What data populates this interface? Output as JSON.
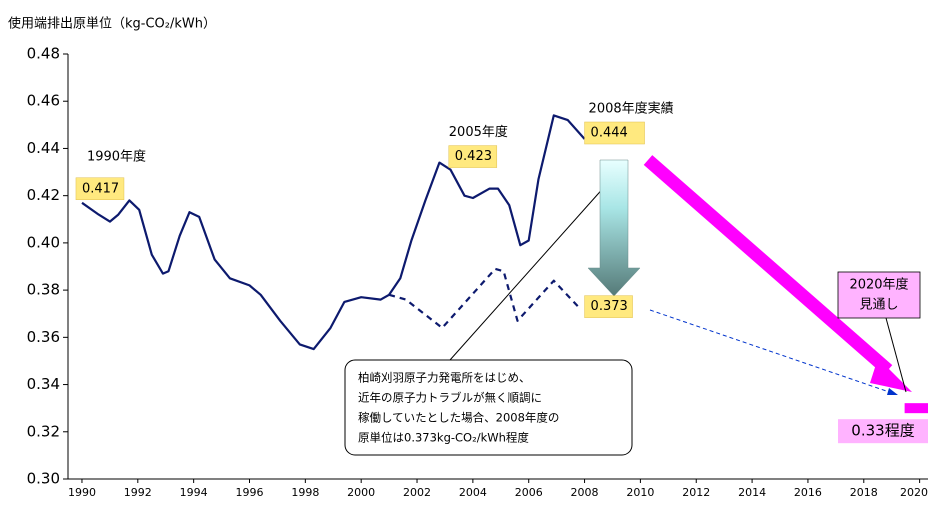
{
  "chart_data": {
    "type": "line",
    "title": "使用端排出原単位（kg-CO₂/kWh）",
    "xlim": [
      1989.5,
      2020.3
    ],
    "xticks": [
      1990,
      1992,
      1994,
      1996,
      1998,
      2000,
      2002,
      2004,
      2006,
      2008,
      2010,
      2012,
      2014,
      2016,
      2018,
      2020
    ],
    "ylim": [
      0.3,
      0.48
    ],
    "yticks": [
      {
        "value": 0.3,
        "label": "0.30"
      },
      0.32,
      0.34,
      0.36,
      0.38,
      {
        "value": 0.4,
        "label": "0.40"
      },
      0.42,
      0.44,
      0.46,
      0.48
    ],
    "grid": false,
    "series": [
      {
        "color": "#0d1a6e",
        "style": "solid",
        "x": [
          1990,
          1990.6,
          1991,
          1991.3,
          1991.7,
          1992.05,
          1992.5,
          1992.9,
          1993.1,
          1993.5,
          1993.85,
          1994.2,
          1994.75,
          1995.3,
          1996,
          1996.4,
          1997.1,
          1997.8,
          1998.3,
          1998.9,
          1999.4,
          2000,
          2000.7,
          2001,
          2001.4,
          2001.8,
          2002.3,
          2002.8,
          2003.2,
          2003.7,
          2004,
          2004.6,
          2004.9,
          2005.3,
          2005.7,
          2006,
          2006.35,
          2006.9,
          2007.4,
          2008
        ],
        "values": [
          0.417,
          0.412,
          0.409,
          0.412,
          0.418,
          0.414,
          0.395,
          0.387,
          0.388,
          0.403,
          0.413,
          0.411,
          0.393,
          0.385,
          0.382,
          0.378,
          0.367,
          0.357,
          0.355,
          0.364,
          0.375,
          0.377,
          0.376,
          0.378,
          0.385,
          0.401,
          0.418,
          0.434,
          0.431,
          0.42,
          0.419,
          0.423,
          0.423,
          0.416,
          0.399,
          0.401,
          0.427,
          0.454,
          0.452,
          0.444
        ]
      },
      {
        "color": "#0d1a6e",
        "style": "dashed",
        "x": [
          2001,
          2001.6,
          2002.9,
          2004.8,
          2005.1,
          2005.6,
          2006.9,
          2007.85
        ],
        "values": [
          0.378,
          0.376,
          0.364,
          0.389,
          0.388,
          0.367,
          0.384,
          0.372
        ]
      }
    ],
    "highlights": [
      {
        "caption": "1990年度",
        "year": 1990,
        "value": 0.417
      },
      {
        "caption": "2005年度",
        "year": 2005,
        "value": 0.423
      },
      {
        "caption": "2008年度実績",
        "year": 2008,
        "value": 0.444
      },
      {
        "year": 2008,
        "value": 0.373
      }
    ],
    "target": {
      "caption": [
        "2020年度",
        "見通し"
      ],
      "year": 2020,
      "value": 0.33,
      "value_label": "0.33程度",
      "color": "#ff00ff"
    },
    "note": [
      "柏崎刈羽原子力発電所をはじめ、",
      "近年の原子力トラブルが無く順調に",
      "稼働していたとした場合、2008年度の",
      "原単位は0.373kg-CO₂/kWh程度"
    ]
  }
}
